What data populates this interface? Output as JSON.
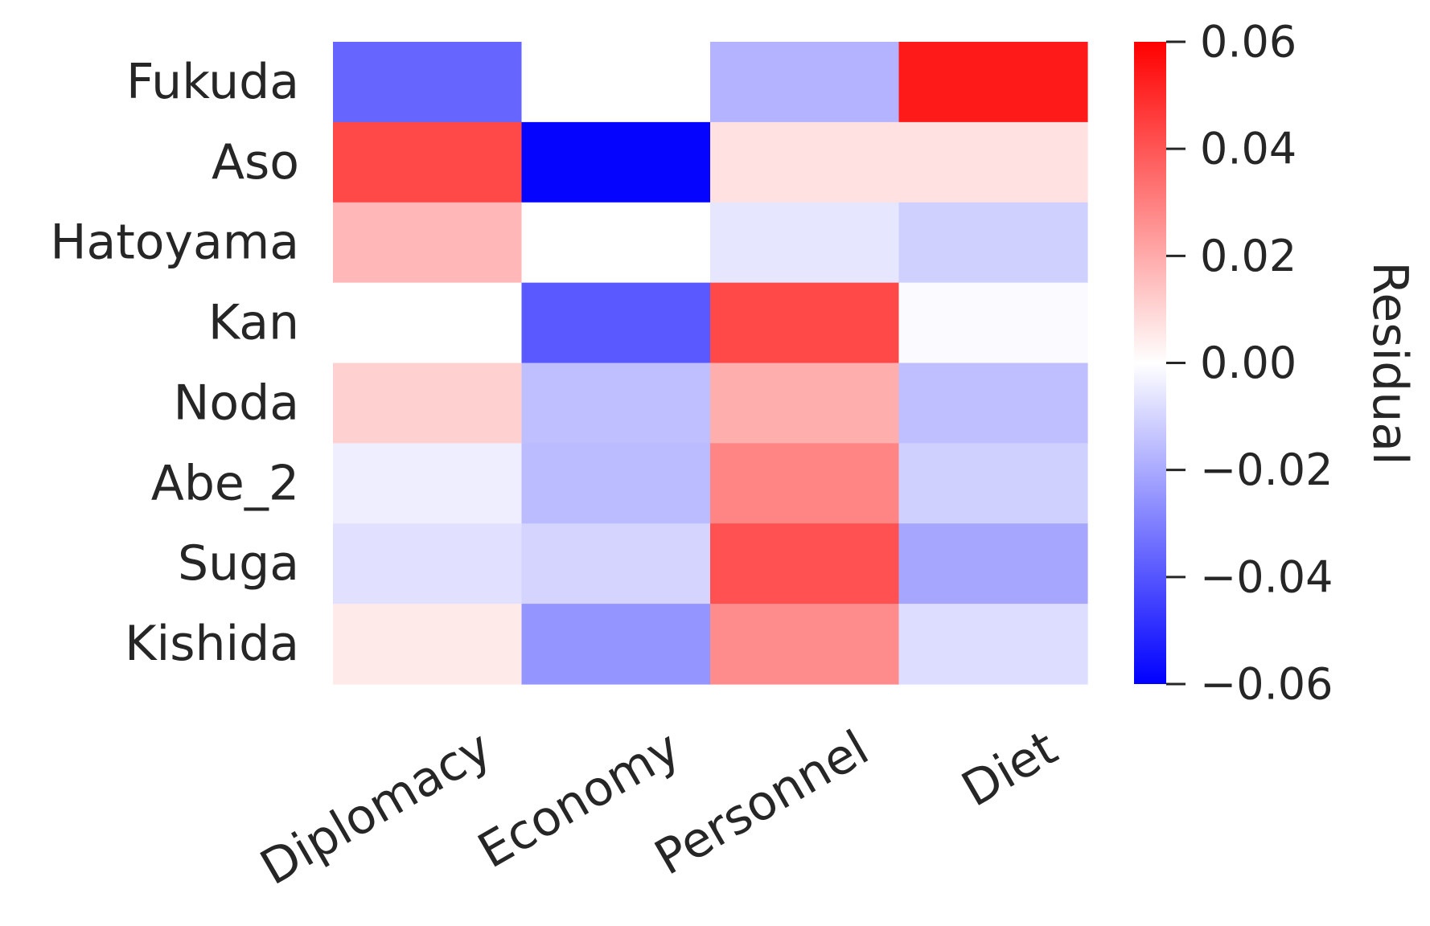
{
  "chart_data": {
    "type": "heatmap",
    "title": "",
    "colormap": "bwr",
    "colors": {
      "low": "#0000ff",
      "mid": "#ffffff",
      "high": "#ff0000",
      "text": "#262626"
    },
    "rows": [
      "Fukuda",
      "Aso",
      "Hatoyama",
      "Kan",
      "Noda",
      "Abe_2",
      "Suga",
      "Kishida"
    ],
    "columns": [
      "Diplomacy",
      "Economy",
      "Personnel",
      "Diet"
    ],
    "values": [
      [
        -0.036,
        0.0,
        -0.018,
        0.054
      ],
      [
        0.043,
        -0.059,
        0.007,
        0.007
      ],
      [
        0.017,
        0.0,
        -0.006,
        -0.011
      ],
      [
        0.0,
        -0.039,
        0.043,
        -0.001
      ],
      [
        0.011,
        -0.015,
        0.019,
        -0.015
      ],
      [
        -0.004,
        -0.016,
        0.029,
        -0.011
      ],
      [
        -0.007,
        -0.01,
        0.041,
        -0.021
      ],
      [
        0.005,
        -0.025,
        0.027,
        -0.008
      ]
    ],
    "vmin": -0.06,
    "vmax": 0.06,
    "colorbar": {
      "label": "Residual",
      "ticks": [
        0.06,
        0.04,
        0.02,
        0.0,
        -0.02,
        -0.04,
        -0.06
      ],
      "tick_labels": [
        "0.06",
        "0.04",
        "0.02",
        "0.00",
        "−0.02",
        "−0.04",
        "−0.06"
      ]
    }
  }
}
